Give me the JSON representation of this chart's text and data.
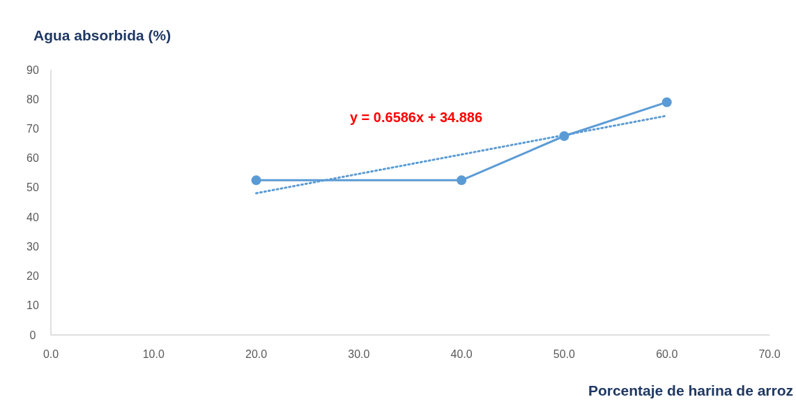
{
  "chart_data": {
    "type": "line",
    "title": "Agua absorbida (%)",
    "xlabel": "Porcentaje de harina de arroz",
    "annotations": [
      "y = 0.6586x + 34.886"
    ],
    "xlim": [
      0,
      70
    ],
    "xticks": [
      {
        "value": 0,
        "label": "0.0"
      },
      {
        "value": 10,
        "label": "10.0"
      },
      {
        "value": 20,
        "label": "20.0"
      },
      {
        "value": 30,
        "label": "30.0"
      },
      {
        "value": 40,
        "label": "40.0"
      },
      {
        "value": 50,
        "label": "50.0"
      },
      {
        "value": 60,
        "label": "60.0"
      },
      {
        "value": 70,
        "label": "70.0"
      }
    ],
    "ylim": [
      0,
      90
    ],
    "yticks": [
      0,
      10,
      20,
      30,
      40,
      50,
      60,
      70,
      80,
      90
    ],
    "grid": false,
    "series": [
      {
        "color": "#5b9bd5",
        "x": [
          20,
          40,
          50,
          60
        ],
        "values": [
          52.5,
          52.5,
          67.5,
          79
        ],
        "marker": "circle",
        "line_style": "solid"
      },
      {
        "color": "#5b9bd5",
        "x": [
          20,
          60
        ],
        "values": [
          48.1,
          74.4
        ],
        "marker": "none",
        "line_style": "dotted"
      }
    ]
  }
}
